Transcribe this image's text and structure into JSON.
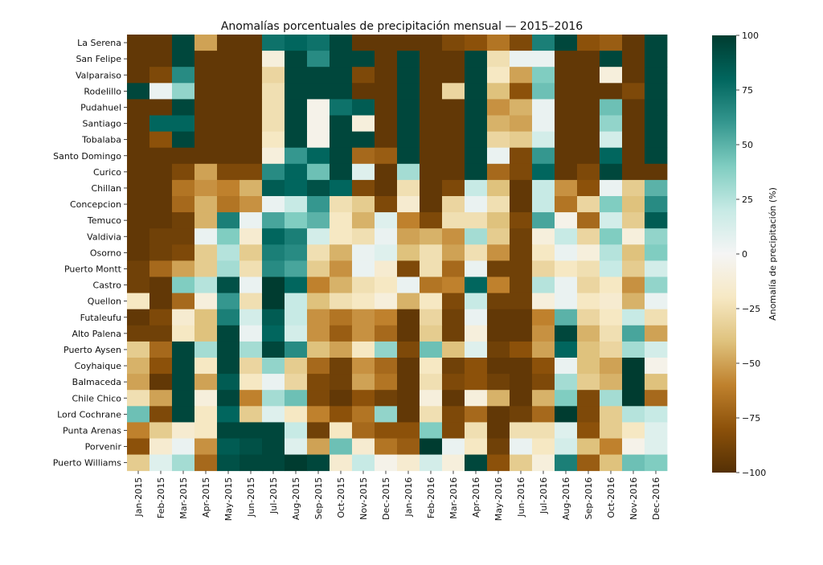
{
  "chart_data": {
    "type": "heatmap",
    "title": "Anomalías porcentuales de precipitación mensual — 2015–2016",
    "colorbar_label": "Anomalía de precipitación (%)",
    "zlim": [
      -100,
      100
    ],
    "colorbar_ticks": [
      100,
      75,
      50,
      25,
      0,
      -25,
      -50,
      -75,
      -100
    ],
    "colormap": "BrBG",
    "colormap_stops": [
      "#543005",
      "#8c510a",
      "#bf812d",
      "#dfc27d",
      "#f6e8c3",
      "#f5f5f5",
      "#c7eae5",
      "#80cdc1",
      "#35978f",
      "#01665e",
      "#003c30"
    ],
    "x_categories": [
      "Jan-2015",
      "Feb-2015",
      "Mar-2015",
      "Apr-2015",
      "May-2015",
      "Jun-2015",
      "Jul-2015",
      "Aug-2015",
      "Sep-2015",
      "Oct-2015",
      "Nov-2015",
      "Dec-2015",
      "Jan-2016",
      "Feb-2016",
      "Mar-2016",
      "Apr-2016",
      "May-2016",
      "Jun-2016",
      "Jul-2016",
      "Aug-2016",
      "Sep-2016",
      "Oct-2016",
      "Nov-2016",
      "Dec-2016"
    ],
    "y_categories": [
      "La Serena",
      "San Felipe",
      "Valparaiso",
      "Rodelillo",
      "Pudahuel",
      "Santiago",
      "Tobalaba",
      "Santo Domingo",
      "Curico",
      "Chillan",
      "Concepcion",
      "Temuco",
      "Valdivia",
      "Osorno",
      "Puerto Montt",
      "Castro",
      "Quellon",
      "Futaleufu",
      "Alto Palena",
      "Puerto Aysen",
      "Coyhaique",
      "Balmaceda",
      "Chile Chico",
      "Lord Cochrane",
      "Punta Arenas",
      "Porvenir",
      "Puerto Williams"
    ],
    "values": [
      [
        -95,
        -95,
        95,
        -50,
        -95,
        -95,
        75,
        80,
        75,
        95,
        -95,
        -95,
        -95,
        -95,
        -85,
        -80,
        -65,
        -85,
        70,
        95,
        -80,
        -75,
        -95,
        95
      ],
      [
        -95,
        -95,
        95,
        -95,
        -95,
        -95,
        -10,
        95,
        65,
        95,
        95,
        -95,
        95,
        -95,
        -95,
        95,
        -25,
        5,
        5,
        -95,
        -95,
        95,
        -95,
        95
      ],
      [
        -95,
        -85,
        65,
        -95,
        -95,
        -95,
        -30,
        95,
        95,
        95,
        -85,
        -95,
        95,
        -95,
        -95,
        95,
        -20,
        -50,
        40,
        -95,
        -95,
        -10,
        -95,
        95
      ],
      [
        95,
        5,
        35,
        -95,
        -95,
        -95,
        -25,
        95,
        95,
        95,
        -95,
        -95,
        95,
        -95,
        -30,
        95,
        -40,
        -80,
        45,
        -95,
        -95,
        -95,
        -85,
        95
      ],
      [
        -95,
        -95,
        95,
        -95,
        -95,
        -95,
        -25,
        95,
        -5,
        75,
        85,
        -95,
        95,
        -95,
        -95,
        95,
        -55,
        -45,
        5,
        -95,
        -95,
        45,
        -95,
        95
      ],
      [
        -95,
        80,
        80,
        -95,
        -95,
        -95,
        -25,
        95,
        -5,
        95,
        -10,
        -95,
        95,
        -95,
        -95,
        95,
        -45,
        -50,
        5,
        -95,
        -95,
        35,
        -95,
        95
      ],
      [
        -95,
        -80,
        95,
        -95,
        -95,
        -95,
        -20,
        95,
        -5,
        95,
        95,
        -95,
        95,
        -95,
        -95,
        95,
        -30,
        -35,
        15,
        -95,
        -95,
        15,
        -95,
        95
      ],
      [
        -95,
        -95,
        -95,
        -95,
        -95,
        -95,
        -10,
        60,
        80,
        95,
        -70,
        -75,
        95,
        -95,
        -95,
        95,
        5,
        -85,
        60,
        -95,
        -95,
        80,
        -95,
        95
      ],
      [
        -95,
        -95,
        -85,
        -50,
        -85,
        -85,
        65,
        80,
        45,
        95,
        10,
        -95,
        30,
        -95,
        -95,
        95,
        -70,
        -85,
        80,
        -95,
        -85,
        95,
        -95,
        -95
      ],
      [
        -95,
        -95,
        -65,
        -55,
        -60,
        -45,
        85,
        80,
        90,
        80,
        -85,
        -95,
        -25,
        -95,
        -85,
        20,
        -40,
        -95,
        20,
        -55,
        -80,
        5,
        -35,
        50
      ],
      [
        -95,
        -95,
        -70,
        -45,
        -65,
        -55,
        5,
        20,
        60,
        -25,
        -35,
        -85,
        -15,
        -95,
        -30,
        5,
        -25,
        -95,
        20,
        -65,
        -30,
        40,
        -40,
        65
      ],
      [
        -95,
        -95,
        -90,
        -45,
        70,
        5,
        55,
        40,
        50,
        -20,
        -45,
        10,
        -60,
        -85,
        -25,
        -25,
        -40,
        -85,
        55,
        -5,
        -70,
        15,
        -35,
        85
      ],
      [
        -95,
        -90,
        -90,
        5,
        40,
        -15,
        80,
        70,
        15,
        -20,
        -25,
        5,
        -50,
        -45,
        -55,
        30,
        -35,
        -90,
        -10,
        20,
        -30,
        40,
        -10,
        35
      ],
      [
        -95,
        -90,
        -85,
        -35,
        25,
        -35,
        70,
        65,
        -25,
        -45,
        5,
        10,
        -40,
        -25,
        -50,
        -25,
        -55,
        -90,
        -20,
        5,
        -10,
        25,
        -40,
        40
      ],
      [
        -90,
        -70,
        -50,
        -35,
        30,
        -25,
        65,
        55,
        -35,
        -55,
        5,
        -15,
        -85,
        -25,
        -70,
        5,
        -90,
        -90,
        -30,
        -20,
        -25,
        20,
        -35,
        15
      ],
      [
        -90,
        -95,
        40,
        25,
        90,
        5,
        100,
        80,
        -60,
        -45,
        -25,
        -20,
        5,
        -65,
        -60,
        80,
        -60,
        -90,
        25,
        5,
        -30,
        -20,
        -55,
        35
      ],
      [
        -20,
        -95,
        -70,
        -10,
        60,
        -25,
        100,
        20,
        -40,
        -25,
        -20,
        -10,
        -45,
        -20,
        -85,
        20,
        -90,
        -90,
        -10,
        5,
        -20,
        -15,
        -45,
        5
      ],
      [
        -95,
        -85,
        -15,
        -40,
        70,
        15,
        85,
        20,
        -55,
        -65,
        -55,
        -60,
        -95,
        -30,
        -90,
        5,
        -95,
        -95,
        -60,
        50,
        -30,
        -20,
        20,
        -25
      ],
      [
        -90,
        -90,
        -20,
        -40,
        95,
        5,
        80,
        15,
        -55,
        -75,
        -55,
        -70,
        -95,
        -35,
        -90,
        -10,
        -95,
        -95,
        -55,
        95,
        -45,
        -25,
        55,
        -50
      ],
      [
        -35,
        -70,
        95,
        30,
        95,
        30,
        95,
        65,
        -40,
        -50,
        -20,
        35,
        -85,
        45,
        -40,
        10,
        -90,
        -80,
        -50,
        80,
        -40,
        -30,
        30,
        15
      ],
      [
        -45,
        -80,
        95,
        -20,
        95,
        -30,
        35,
        -35,
        -70,
        -90,
        -55,
        -70,
        -95,
        -20,
        -90,
        -80,
        -95,
        -95,
        -80,
        5,
        -40,
        -50,
        100,
        -5
      ],
      [
        -50,
        -95,
        95,
        -50,
        85,
        -20,
        5,
        -30,
        -85,
        -90,
        -50,
        -65,
        -95,
        -25,
        -85,
        -80,
        -90,
        -95,
        -85,
        30,
        -35,
        -45,
        100,
        -40
      ],
      [
        -25,
        -50,
        95,
        -10,
        95,
        -60,
        30,
        45,
        -85,
        -95,
        -80,
        -90,
        -95,
        -10,
        -95,
        -10,
        -45,
        -95,
        -45,
        40,
        -85,
        30,
        100,
        -70
      ],
      [
        45,
        -85,
        95,
        -20,
        80,
        -35,
        10,
        -20,
        -60,
        -80,
        -65,
        35,
        -95,
        -25,
        -85,
        -70,
        -95,
        -90,
        -70,
        100,
        -85,
        -35,
        25,
        20
      ],
      [
        -60,
        -35,
        -15,
        -20,
        95,
        95,
        95,
        20,
        -90,
        -20,
        -70,
        -80,
        -80,
        40,
        -85,
        -25,
        -95,
        -25,
        -25,
        10,
        -80,
        -35,
        -20,
        10
      ],
      [
        -80,
        -15,
        5,
        -55,
        85,
        90,
        95,
        10,
        -50,
        45,
        -15,
        -65,
        -75,
        100,
        5,
        -20,
        -90,
        5,
        -20,
        15,
        -40,
        -60,
        -5,
        10
      ],
      [
        -35,
        10,
        30,
        -70,
        90,
        95,
        95,
        100,
        95,
        -15,
        20,
        -5,
        -15,
        15,
        -10,
        95,
        -80,
        -35,
        -10,
        70,
        -75,
        -40,
        45,
        40
      ]
    ]
  }
}
